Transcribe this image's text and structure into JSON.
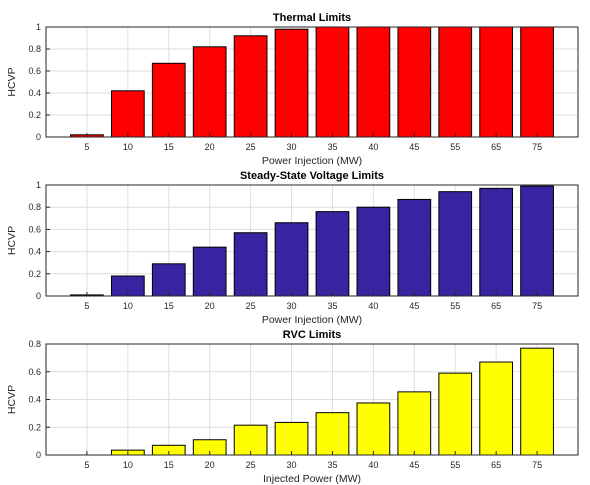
{
  "chart_data": [
    {
      "type": "bar",
      "title": "Thermal Limits",
      "xlabel": "Power Injection (MW)",
      "ylabel": "HCVP",
      "categories": [
        "5",
        "10",
        "15",
        "20",
        "25",
        "30",
        "35",
        "40",
        "45",
        "55",
        "65",
        "75"
      ],
      "values": [
        0.02,
        0.42,
        0.67,
        0.82,
        0.92,
        0.98,
        1.0,
        1.0,
        1.0,
        1.0,
        1.0,
        1.0
      ],
      "ylim": [
        0,
        1
      ],
      "yticks": [
        "0",
        "0.2",
        "0.4",
        "0.6",
        "0.8",
        "1"
      ],
      "color": "#ff0000",
      "grid": true
    },
    {
      "type": "bar",
      "title": "Steady-State Voltage Limits",
      "xlabel": "Power Injection (MW)",
      "ylabel": "HCVP",
      "categories": [
        "5",
        "10",
        "15",
        "20",
        "25",
        "30",
        "35",
        "40",
        "45",
        "55",
        "65",
        "75"
      ],
      "values": [
        0.01,
        0.18,
        0.29,
        0.44,
        0.57,
        0.66,
        0.76,
        0.8,
        0.87,
        0.94,
        0.97,
        0.99
      ],
      "ylim": [
        0,
        1
      ],
      "yticks": [
        "0",
        "0.2",
        "0.4",
        "0.6",
        "0.8",
        "1"
      ],
      "color": "#3624a0",
      "grid": true
    },
    {
      "type": "bar",
      "title": "RVC Limits",
      "xlabel": "Injected Power (MW)",
      "ylabel": "HCVP",
      "categories": [
        "5",
        "10",
        "15",
        "20",
        "25",
        "30",
        "35",
        "40",
        "45",
        "55",
        "65",
        "75"
      ],
      "values": [
        0.0,
        0.035,
        0.07,
        0.11,
        0.215,
        0.235,
        0.305,
        0.375,
        0.455,
        0.59,
        0.67,
        0.77
      ],
      "ylim": [
        0,
        0.8
      ],
      "yticks": [
        "0",
        "0.2",
        "0.4",
        "0.6",
        "0.8"
      ],
      "color": "#ffff00",
      "grid": true
    }
  ]
}
